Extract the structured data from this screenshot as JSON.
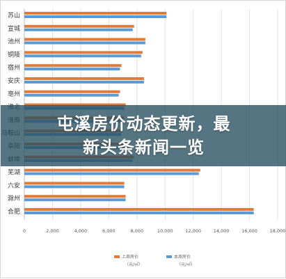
{
  "headline": {
    "line1": "屯溪房价动态更新，最",
    "line2": "新头条新闻一览"
  },
  "colors": {
    "series_prev": "#E07B39",
    "series_curr": "#5B9BD5",
    "grid": "#e1e1e1",
    "banner": "#264E5F"
  },
  "chart_data": {
    "type": "bar",
    "orientation": "horizontal",
    "categories": [
      "苏山",
      "宣城",
      "池州",
      "铜陵",
      "宿州",
      "安庆",
      "亳州",
      "淮北",
      "淮南",
      "马鞍山",
      "阜阳",
      "蚌埠",
      "芜湖",
      "六安",
      "滁州",
      "合肥"
    ],
    "series": [
      {
        "name": "上周房价",
        "unit": "（元/㎡）",
        "values": [
          10100,
          7800,
          8600,
          8400,
          6900,
          8500,
          6800,
          7200,
          7100,
          7000,
          7300,
          7800,
          12500,
          7100,
          7200,
          16300
        ]
      },
      {
        "name": "本周房价",
        "unit": "（元/㎡）",
        "values": [
          10100,
          7700,
          8600,
          8300,
          6800,
          8500,
          6700,
          7100,
          7000,
          6900,
          7200,
          7700,
          12400,
          7100,
          7200,
          16300
        ]
      }
    ],
    "xlim": [
      0,
      18000
    ],
    "xticks": [
      "0",
      "2,000",
      "4,000",
      "6,000",
      "8,000",
      "10,000",
      "12,000",
      "14,000",
      "16,000",
      "18,000"
    ],
    "grid": true,
    "legend_position": "bottom"
  }
}
